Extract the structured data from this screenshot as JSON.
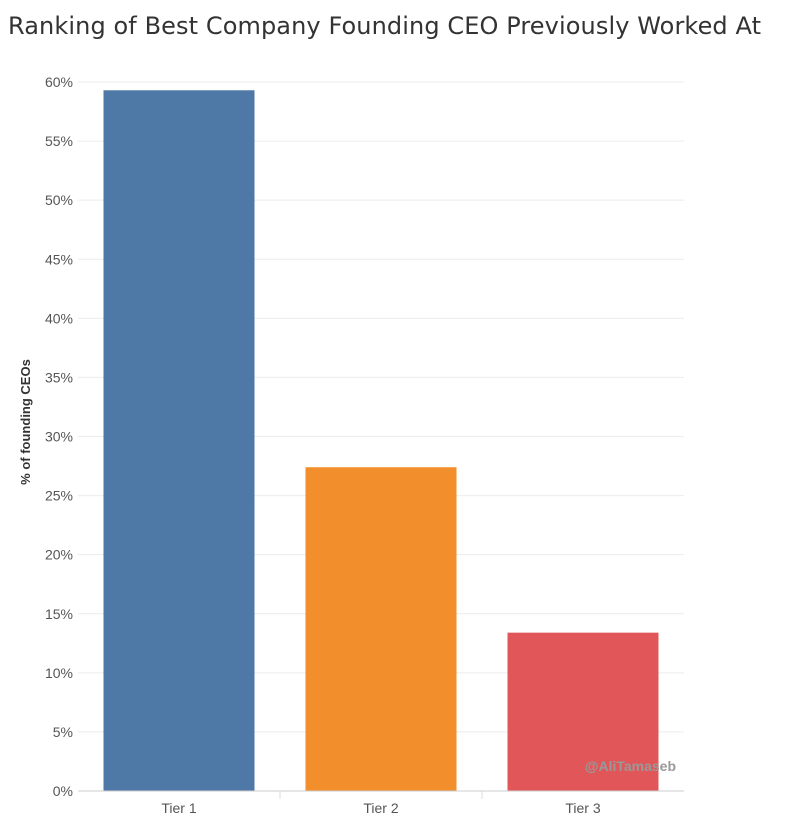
{
  "chart_data": {
    "type": "bar",
    "title": "Ranking of Best Company Founding CEO Previously Worked At",
    "xlabel": "",
    "ylabel": "% of founding CEOs",
    "categories": [
      "Tier 1",
      "Tier 2",
      "Tier 3"
    ],
    "values": [
      59.3,
      27.4,
      13.4
    ],
    "colors": [
      "#4e79a7",
      "#f28e2b",
      "#e15759"
    ],
    "ylim": [
      0,
      60
    ],
    "yticks": [
      "0%",
      "5%",
      "10%",
      "15%",
      "20%",
      "25%",
      "30%",
      "35%",
      "40%",
      "45%",
      "50%",
      "55%",
      "60%"
    ],
    "grid": true,
    "watermark": "@AliTamaseb"
  }
}
